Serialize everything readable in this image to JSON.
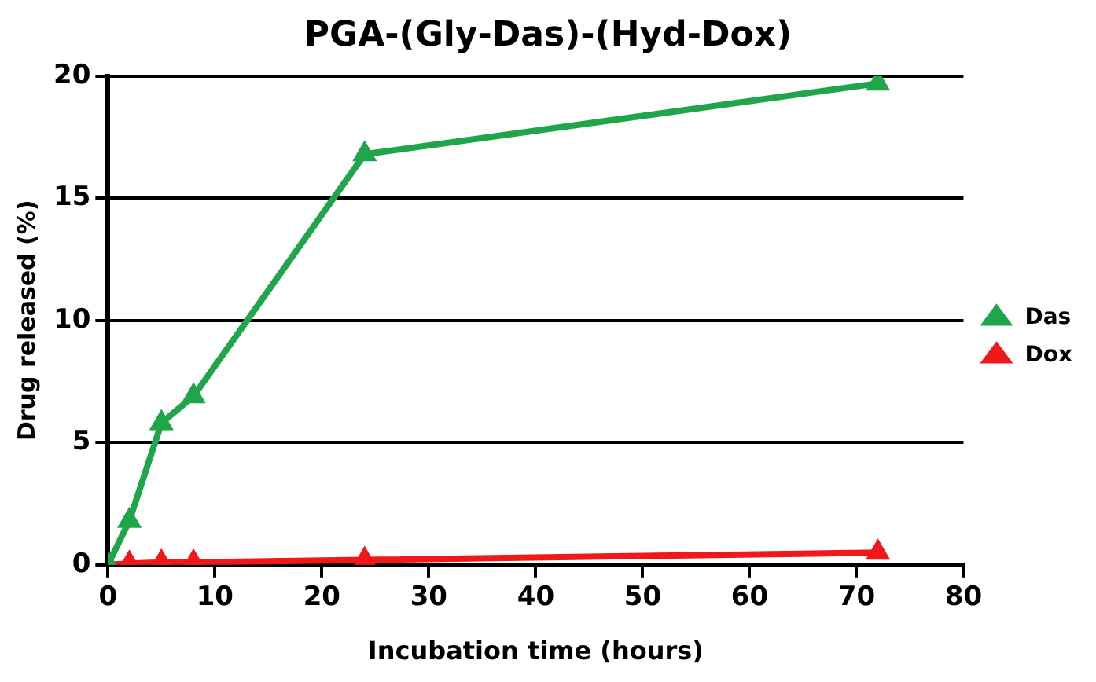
{
  "chart_data": {
    "type": "line",
    "title": "PGA-(Gly-Das)-(Hyd-Dox)",
    "xlabel": "Incubation time (hours)",
    "ylabel": "Drug released (%)",
    "x": [
      0,
      2,
      5,
      8,
      24,
      72
    ],
    "series": [
      {
        "name": "Das",
        "color": "#1fa64a",
        "values": [
          0,
          1.8,
          5.8,
          6.9,
          16.8,
          19.7
        ]
      },
      {
        "name": "Dox",
        "color": "#f01818",
        "values": [
          0,
          0.05,
          0.1,
          0.1,
          0.2,
          0.5
        ]
      }
    ],
    "xlim": [
      0,
      80
    ],
    "xticks": [
      0,
      10,
      20,
      30,
      40,
      50,
      60,
      70,
      80
    ],
    "ylim": [
      0,
      20
    ],
    "yticks": [
      0,
      5,
      10,
      15,
      20
    ],
    "grid": "y",
    "legend": "right",
    "marker": "triangle",
    "line_style": "solid"
  }
}
